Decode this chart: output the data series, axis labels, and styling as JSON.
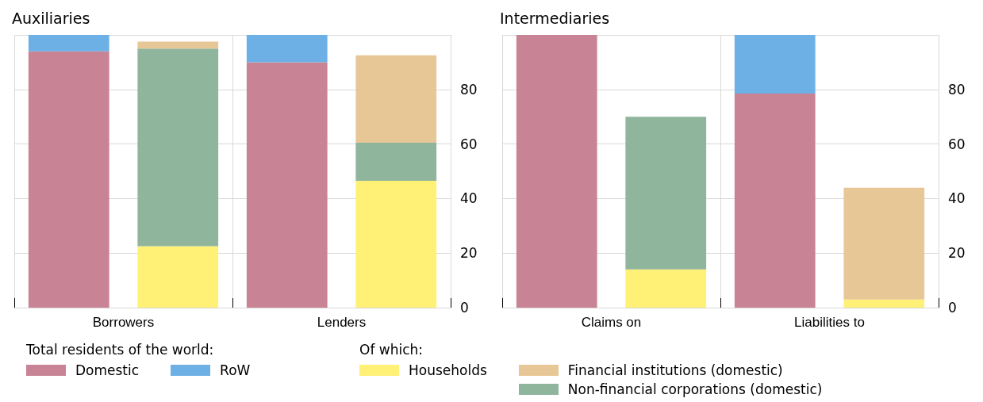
{
  "chart_data": [
    {
      "type": "bar",
      "title": "Auxiliaries",
      "categories": [
        "Borrowers",
        null,
        "Lenders",
        null
      ],
      "stacked": true,
      "grid": true,
      "legend": "bottom",
      "legend_title": "Total residents of the world:",
      "annotations": [
        "Of which:"
      ],
      "ylim": [
        0,
        100
      ],
      "yticks": [
        0,
        20,
        40,
        60,
        80,
        {
          "value": 100,
          "label": null
        }
      ],
      "series": [
        {
          "name": "Domestic",
          "color": "#c88394",
          "values": [
            94,
            null,
            90,
            null
          ]
        },
        {
          "name": "RoW",
          "color": "#6cb0e6",
          "values": [
            6,
            null,
            10,
            null
          ]
        },
        {
          "name": "Households",
          "color": "#fff176",
          "values": [
            null,
            22.5,
            null,
            46.5
          ]
        },
        {
          "name": "Non-financial corporations (domestic)",
          "color": "#8fb59d",
          "values": [
            null,
            72.5,
            null,
            14
          ]
        },
        {
          "name": "Financial institutions (domestic)",
          "color": "#e8c796",
          "values": [
            null,
            2.5,
            null,
            32
          ]
        }
      ]
    },
    {
      "type": "bar",
      "title": "Intermediaries",
      "categories": [
        "Claims on",
        null,
        "Liabilities to",
        null
      ],
      "stacked": true,
      "grid": true,
      "ylim": [
        0,
        100
      ],
      "yticks": [
        0,
        20,
        40,
        60,
        80,
        {
          "value": 100,
          "label": null
        }
      ],
      "series": [
        {
          "color": "#c88394",
          "values": [
            100,
            null,
            78.5,
            null
          ]
        },
        {
          "color": "#6cb0e6",
          "values": [
            0,
            null,
            21.5,
            null
          ]
        },
        {
          "color": "#fff176",
          "values": [
            null,
            14,
            null,
            3
          ]
        },
        {
          "color": "#8fb59d",
          "values": [
            null,
            56,
            null,
            0
          ]
        },
        {
          "color": "#e8c796",
          "values": [
            null,
            0,
            null,
            41
          ]
        }
      ]
    }
  ]
}
